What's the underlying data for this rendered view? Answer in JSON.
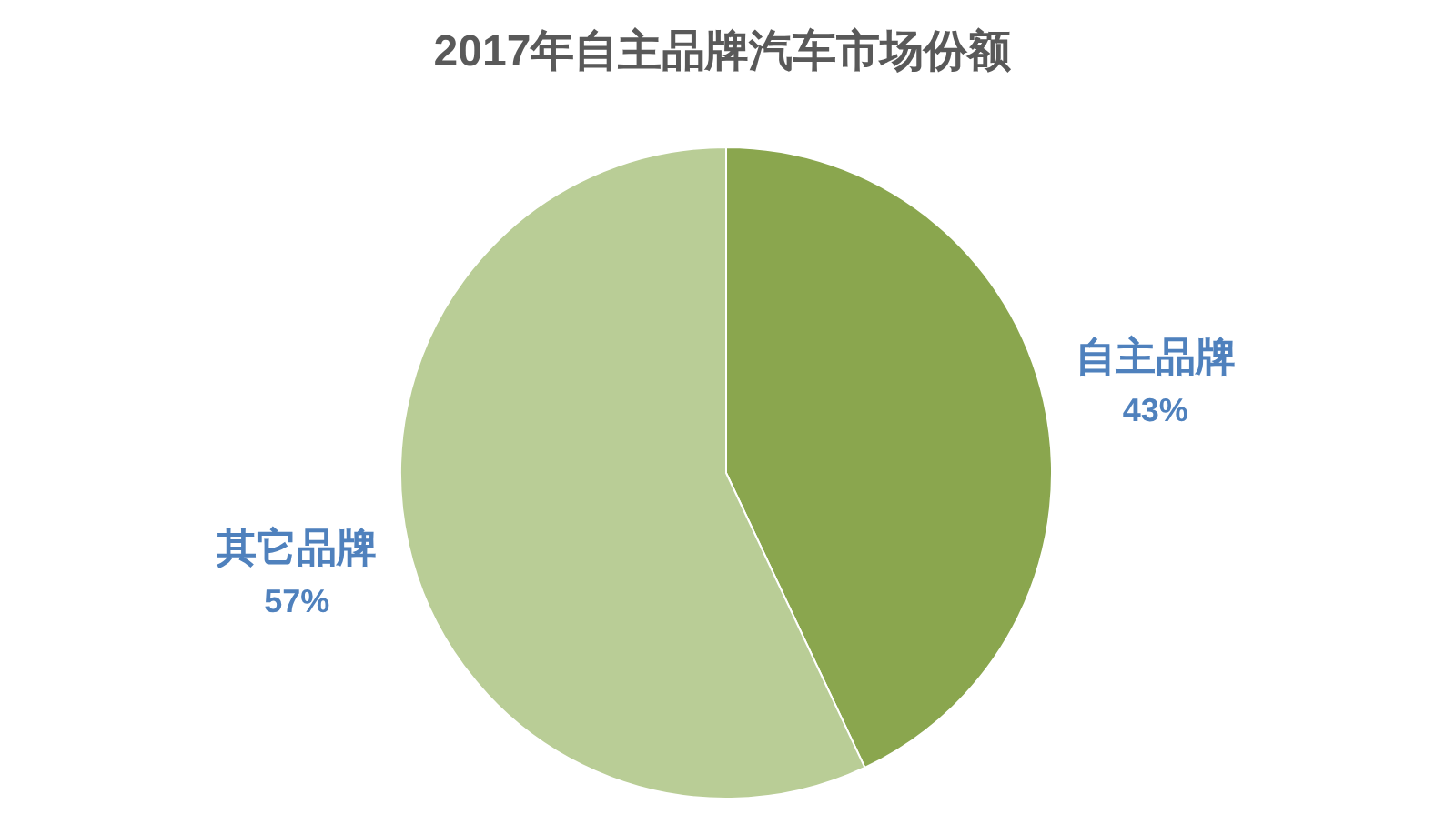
{
  "chart_data": {
    "type": "pie",
    "title": "2017年自主品牌汽车市场份额",
    "categories": [
      "自主品牌",
      "其它品牌"
    ],
    "values": [
      43,
      57
    ],
    "colors": [
      "#8aa64e",
      "#b9cd96"
    ],
    "value_labels": [
      "43%",
      "57%"
    ]
  }
}
